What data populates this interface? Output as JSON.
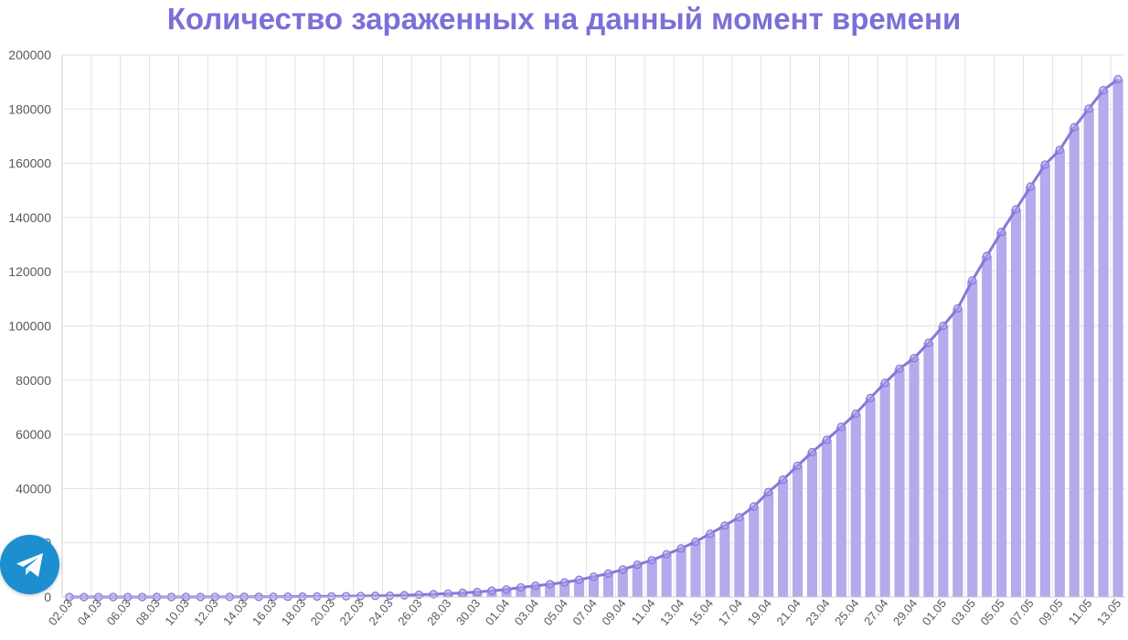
{
  "header": {
    "title": "Количество зараженных на данный момент времени"
  },
  "floating_button": {
    "icon": "telegram-icon",
    "color": "#1d8ed0"
  },
  "chart_data": {
    "type": "bar",
    "title": "Количество зараженных на данный момент времени",
    "xlabel": "",
    "ylabel": "",
    "ylim": [
      0,
      200000
    ],
    "yticks": [
      0,
      20000,
      40000,
      60000,
      80000,
      100000,
      120000,
      140000,
      160000,
      180000,
      200000
    ],
    "grid": true,
    "bar_color": "#b3abec",
    "line_color": "#8877d9",
    "categories": [
      "02.03",
      "03.03",
      "04.03",
      "05.03",
      "06.03",
      "07.03",
      "08.03",
      "09.03",
      "10.03",
      "11.03",
      "12.03",
      "13.03",
      "14.03",
      "15.03",
      "16.03",
      "17.03",
      "18.03",
      "19.03",
      "20.03",
      "21.03",
      "22.03",
      "23.03",
      "24.03",
      "25.03",
      "26.03",
      "27.03",
      "28.03",
      "29.03",
      "30.03",
      "31.03",
      "01.04",
      "02.04",
      "03.04",
      "04.04",
      "05.04",
      "06.04",
      "07.04",
      "08.04",
      "09.04",
      "10.04",
      "11.04",
      "12.04",
      "13.04",
      "14.04",
      "15.04",
      "16.04",
      "17.04",
      "18.04",
      "19.04",
      "20.04",
      "21.04",
      "22.04",
      "23.04",
      "24.04",
      "25.04",
      "26.04",
      "27.04",
      "28.04",
      "29.04",
      "30.04",
      "01.05",
      "02.05",
      "03.05",
      "04.05",
      "05.05",
      "06.05",
      "07.05",
      "08.05",
      "09.05",
      "10.05",
      "11.05",
      "12.05",
      "13.05"
    ],
    "series": [
      {
        "values": [
          3,
          3,
          3,
          3,
          4,
          10,
          17,
          17,
          20,
          28,
          34,
          45,
          59,
          63,
          90,
          114,
          147,
          199,
          253,
          306,
          367,
          438,
          495,
          658,
          840,
          1036,
          1264,
          1534,
          1836,
          2337,
          2777,
          3548,
          4149,
          4731,
          5389,
          6343,
          7497,
          8672,
          10131,
          11917,
          13584,
          15770,
          17893,
          20403,
          23362,
          26353,
          29433,
          33423,
          38730,
          43270,
          48434,
          53452,
          57999,
          62783,
          67657,
          73435,
          79007,
          84235,
          88141,
          93806,
          100042,
          106498,
          116768,
          125817,
          134687,
          143042,
          151427,
          159528,
          164933,
          173317,
          180153,
          186984,
          191008
        ]
      }
    ]
  }
}
